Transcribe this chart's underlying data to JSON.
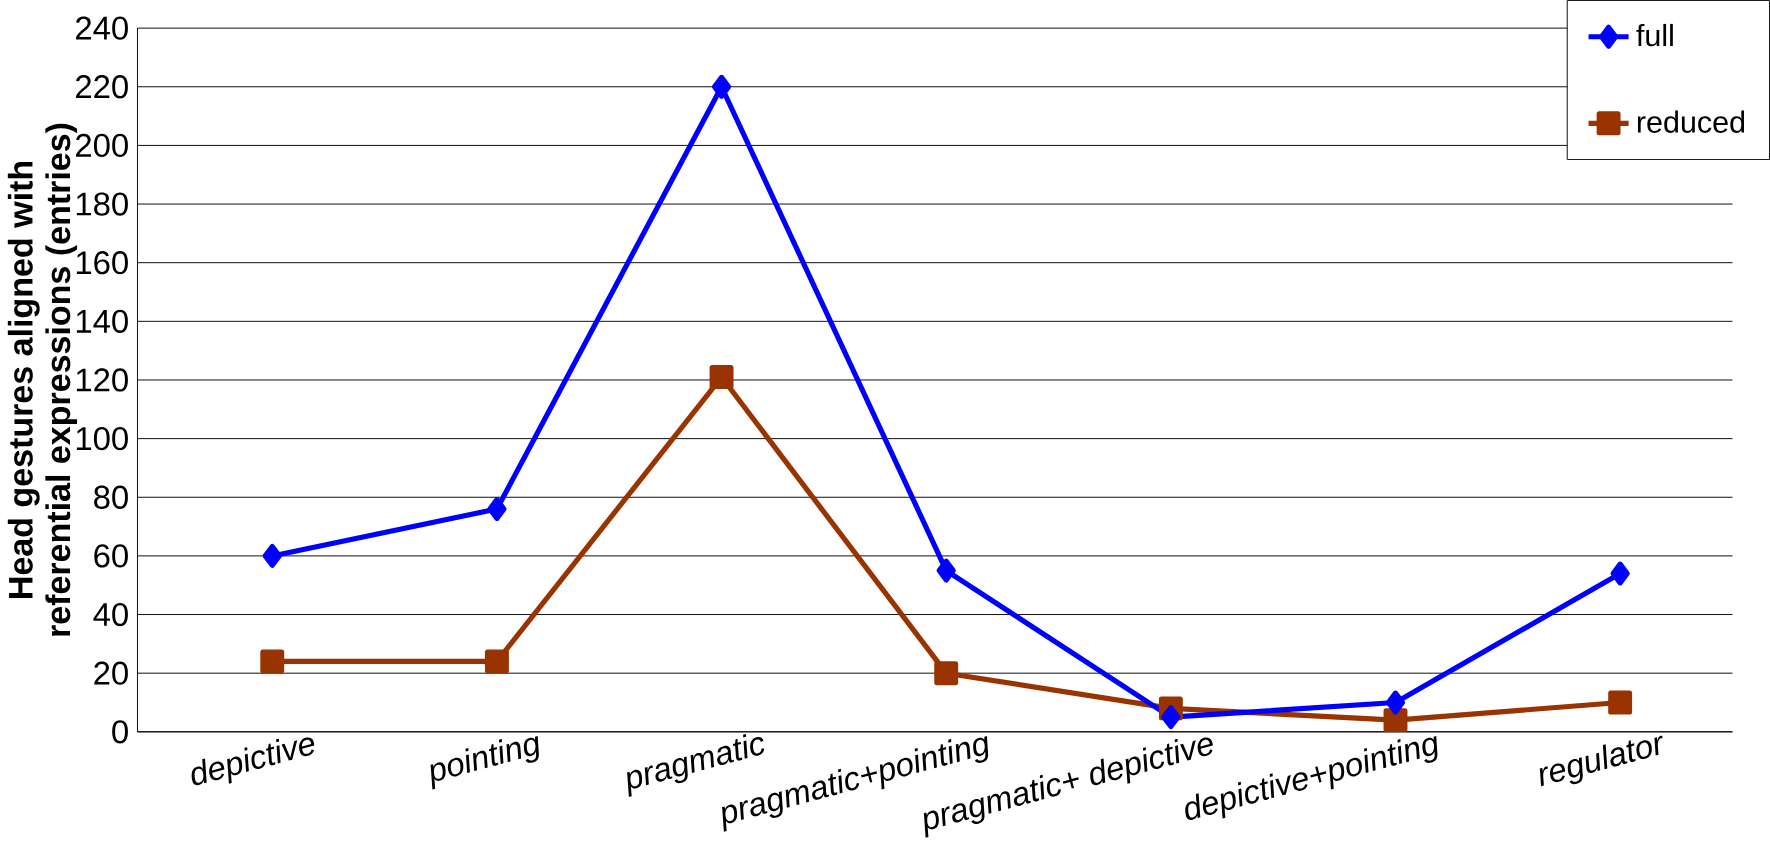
{
  "chart_data": {
    "type": "line",
    "ylabel": "Head gestures aligned with\nreferential expressions (entries)",
    "categories": [
      "depictive",
      "pointing",
      "pragmatic",
      "pragmatic+pointing",
      "pragmatic+ depictive",
      "depictive+pointing",
      "regulator"
    ],
    "series": [
      {
        "name": "full",
        "color": "#0000ff",
        "marker": "diamond",
        "values": [
          60,
          76,
          220,
          55,
          5,
          10,
          54
        ]
      },
      {
        "name": "reduced",
        "color": "#993300",
        "marker": "square",
        "values": [
          24,
          24,
          121,
          20,
          8,
          4,
          10
        ]
      }
    ],
    "ylim": [
      0,
      240
    ],
    "yticks": [
      0,
      20,
      40,
      60,
      80,
      100,
      120,
      140,
      160,
      180,
      200,
      220,
      240
    ],
    "grid": "y",
    "legend": "top right",
    "line_style": "solid"
  }
}
